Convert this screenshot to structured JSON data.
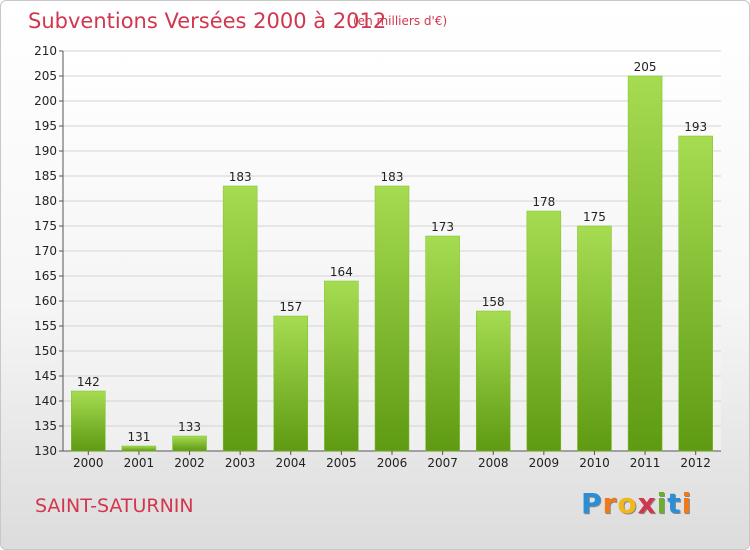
{
  "header": {
    "title": "Subventions Versées 2000 à 2012",
    "subtitle": "(en milliers d'€)"
  },
  "footer": {
    "commune": "SAINT-SATURNIN",
    "logo_letters": [
      "P",
      "r",
      "o",
      "x",
      "i",
      "t",
      "i"
    ],
    "logo_colors": [
      "#2a8fd6",
      "#f07a1a",
      "#f0b81a",
      "#d2364f",
      "#6ab02a",
      "#2a8fd6",
      "#f07a1a"
    ]
  },
  "colors": {
    "bar_top": "#a6dc52",
    "bar_bottom": "#5e9a12",
    "accent": "#d2364f"
  },
  "chart_data": {
    "type": "bar",
    "title": "Subventions Versées 2000 à 2012",
    "subtitle": "(en milliers d'€)",
    "categories": [
      "2000",
      "2001",
      "2002",
      "2003",
      "2004",
      "2005",
      "2006",
      "2007",
      "2008",
      "2009",
      "2010",
      "2011",
      "2012"
    ],
    "values": [
      142,
      131,
      133,
      183,
      157,
      164,
      183,
      173,
      158,
      178,
      175,
      205,
      193
    ],
    "ylim": [
      130,
      210
    ],
    "yticks": [
      130,
      135,
      140,
      145,
      150,
      155,
      160,
      165,
      170,
      175,
      180,
      185,
      190,
      195,
      200,
      205,
      210
    ],
    "grid": true
  }
}
